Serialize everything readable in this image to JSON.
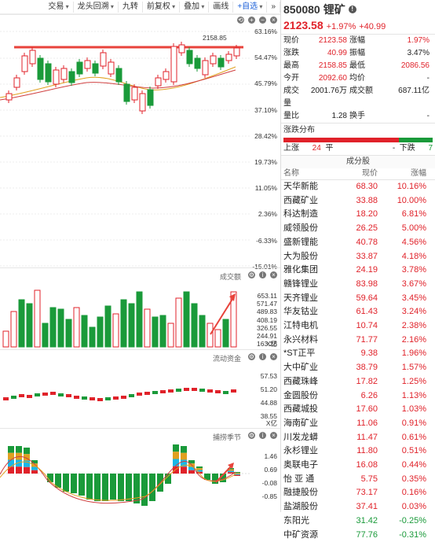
{
  "toolbar": {
    "items": [
      "交易",
      "龙头回溯",
      "九转",
      "前复权",
      "叠加",
      "画线",
      "+自选"
    ],
    "more": "»"
  },
  "kline": {
    "high_label": "2158.85",
    "axis": [
      "63.16%",
      "54.47%",
      "45.79%",
      "37.10%",
      "28.42%",
      "19.73%",
      "11.05%",
      "2.36%",
      "-6.33%",
      "-15.01%"
    ]
  },
  "volume": {
    "label": "成交额",
    "axis": [
      "653.11",
      "571.47",
      "489.83",
      "408.19",
      "326.55",
      "244.91",
      "163.28"
    ],
    "unit": "X亿"
  },
  "fund": {
    "label": "流动资金",
    "axis": [
      "57.53",
      "51.20",
      "44.88",
      "38.55"
    ],
    "unit": "X亿"
  },
  "season": {
    "label": "捕捞季节",
    "axis": [
      "1.46",
      "0.69",
      "-0.08",
      "-0.85"
    ]
  },
  "stock": {
    "code": "850080",
    "name": "锂矿",
    "price": "2123.58",
    "pct": "+1.97%",
    "chg": "+40.99",
    "stats": [
      [
        "现价",
        "2123.58",
        "涨幅",
        "1.97%"
      ],
      [
        "涨跌",
        "40.99",
        "振幅",
        "3.47%"
      ],
      [
        "最高",
        "2158.85",
        "最低",
        "2086.56"
      ],
      [
        "今开",
        "2092.60",
        "均价",
        "-"
      ],
      [
        "成交量",
        "2001.76万",
        "成交额",
        "687.11亿"
      ],
      [
        "量比",
        "1.28",
        "换手",
        "-"
      ]
    ]
  },
  "dist": {
    "label": "涨跌分布",
    "up_label": "上涨",
    "up": "24",
    "flat_label": "平",
    "flat": "-",
    "down_label": "下跌",
    "down": "7"
  },
  "components": {
    "title": "成分股",
    "headers": [
      "名称",
      "现价",
      "涨幅"
    ],
    "rows": [
      [
        "天华新能",
        "68.30",
        "10.16%"
      ],
      [
        "西藏矿业",
        "33.88",
        "10.00%"
      ],
      [
        "科达制造",
        "18.20",
        "6.81%"
      ],
      [
        "威领股份",
        "26.25",
        "5.00%"
      ],
      [
        "盛新锂能",
        "40.78",
        "4.56%"
      ],
      [
        "大为股份",
        "33.87",
        "4.18%"
      ],
      [
        "雅化集团",
        "24.19",
        "3.78%"
      ],
      [
        "赣锋锂业",
        "83.98",
        "3.67%"
      ],
      [
        "天齐锂业",
        "59.64",
        "3.45%"
      ],
      [
        "华友钴业",
        "61.43",
        "3.24%"
      ],
      [
        "江特电机",
        "10.74",
        "2.38%"
      ],
      [
        "永兴材料",
        "71.77",
        "2.16%"
      ],
      [
        "*ST正平",
        "9.38",
        "1.96%"
      ],
      [
        "大中矿业",
        "38.79",
        "1.57%"
      ],
      [
        "西藏珠峰",
        "17.82",
        "1.25%"
      ],
      [
        "金圆股份",
        "6.26",
        "1.13%"
      ],
      [
        "西藏城投",
        "17.60",
        "1.03%"
      ],
      [
        "海南矿业",
        "11.06",
        "0.91%"
      ],
      [
        "川发龙蟒",
        "11.47",
        "0.61%"
      ],
      [
        "永杉锂业",
        "11.80",
        "0.51%"
      ],
      [
        "奥联电子",
        "16.08",
        "0.44%"
      ],
      [
        "怡 亚 通",
        "5.75",
        "0.35%"
      ],
      [
        "融捷股份",
        "73.17",
        "0.16%"
      ],
      [
        "盐湖股份",
        "37.41",
        "0.03%"
      ],
      [
        "东阳光",
        "31.42",
        "-0.25%"
      ],
      [
        "中矿资源",
        "77.76",
        "-0.31%"
      ]
    ]
  }
}
